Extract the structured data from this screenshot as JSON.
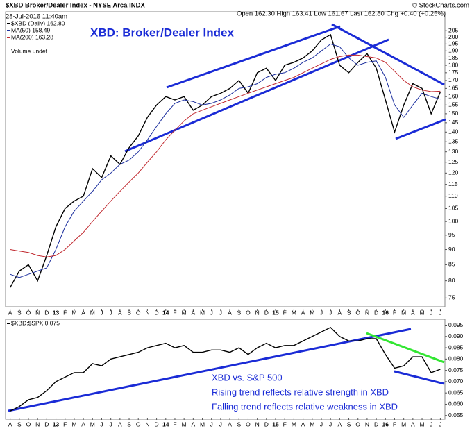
{
  "chart_data": [
    {
      "type": "line",
      "title": "$XBD Broker/Dealer Index - NYSE Arca INDX",
      "subtitle": "28-Jul-2016 11:40am",
      "quote": "Open 162.30 High 163.41 Low 161.67 Last 162.80 Chg +0.40 (+0.25%)",
      "credit": "© StockCharts.com",
      "annotation": "XBD: Broker/Dealer Index",
      "legend_note": "Volume undef",
      "log_scale": true,
      "categories": [
        "A",
        "S",
        "O",
        "N",
        "D",
        "13",
        "F",
        "M",
        "A",
        "M",
        "J",
        "J",
        "A",
        "S",
        "O",
        "N",
        "D",
        "14",
        "F",
        "M",
        "A",
        "M",
        "J",
        "J",
        "A",
        "S",
        "O",
        "N",
        "D",
        "15",
        "F",
        "M",
        "A",
        "M",
        "J",
        "J",
        "A",
        "S",
        "O",
        "N",
        "D",
        "16",
        "F",
        "M",
        "A",
        "M",
        "J",
        "J"
      ],
      "series": [
        {
          "name": "$XBD (Daily) 162.80",
          "color": "#000000",
          "values": [
            78,
            83,
            85,
            80,
            88,
            98,
            105,
            108,
            110,
            122,
            118,
            128,
            124,
            132,
            138,
            148,
            155,
            160,
            158,
            160,
            152,
            155,
            160,
            162,
            165,
            170,
            162,
            175,
            178,
            170,
            180,
            182,
            185,
            190,
            198,
            202,
            180,
            175,
            182,
            188,
            178,
            158,
            140,
            155,
            168,
            165,
            150,
            162.8
          ]
        },
        {
          "name": "MA(50) 158.49",
          "color": "#1c2f9e",
          "values": [
            82,
            81,
            82,
            83,
            84,
            90,
            98,
            104,
            108,
            112,
            117,
            120,
            124,
            126,
            130,
            136,
            143,
            150,
            156,
            158,
            157,
            155,
            156,
            158,
            161,
            165,
            166,
            168,
            172,
            174,
            175,
            178,
            182,
            185,
            190,
            195,
            193,
            185,
            180,
            182,
            183,
            172,
            155,
            148,
            155,
            162,
            160,
            158.49
          ]
        },
        {
          "name": "MA(200) 163.28",
          "color": "#c0282e",
          "values": [
            90,
            89.5,
            89,
            88,
            87.5,
            88,
            90,
            93,
            96,
            100,
            104,
            108,
            112,
            116,
            120,
            125,
            130,
            136,
            141,
            146,
            150,
            152,
            154,
            156,
            158,
            160,
            162,
            164,
            166,
            168,
            170,
            172,
            175,
            178,
            181,
            184,
            186,
            187,
            187,
            186,
            185,
            182,
            176,
            170,
            166,
            164,
            163,
            163.28
          ]
        }
      ],
      "ylim": [
        72,
        210
      ],
      "yticks": [
        75,
        80,
        85,
        90,
        95,
        100,
        105,
        110,
        115,
        120,
        125,
        130,
        135,
        140,
        145,
        150,
        155,
        160,
        165,
        170,
        175,
        180,
        185,
        190,
        195,
        200,
        205
      ]
    },
    {
      "type": "line",
      "annotations": [
        "XBD vs. S&P 500",
        "Rising trend reflects relative strength in XBD",
        "Falling trend reflects relative weakness in XBD"
      ],
      "categories": [
        "A",
        "S",
        "O",
        "N",
        "D",
        "13",
        "F",
        "M",
        "A",
        "M",
        "J",
        "J",
        "A",
        "S",
        "O",
        "N",
        "D",
        "14",
        "F",
        "M",
        "A",
        "M",
        "J",
        "J",
        "A",
        "S",
        "O",
        "N",
        "D",
        "15",
        "F",
        "M",
        "A",
        "M",
        "J",
        "J",
        "A",
        "S",
        "O",
        "N",
        "D",
        "16",
        "F",
        "M",
        "A",
        "M",
        "J",
        "J"
      ],
      "series": [
        {
          "name": "$XBD:$SPX 0.075",
          "color": "#000000",
          "values": [
            0.057,
            0.059,
            0.062,
            0.063,
            0.066,
            0.07,
            0.072,
            0.074,
            0.074,
            0.078,
            0.077,
            0.08,
            0.081,
            0.082,
            0.083,
            0.085,
            0.086,
            0.087,
            0.085,
            0.086,
            0.083,
            0.083,
            0.084,
            0.084,
            0.083,
            0.085,
            0.082,
            0.085,
            0.087,
            0.085,
            0.086,
            0.086,
            0.088,
            0.09,
            0.092,
            0.094,
            0.09,
            0.088,
            0.088,
            0.089,
            0.089,
            0.082,
            0.076,
            0.077,
            0.081,
            0.081,
            0.074,
            0.0755
          ]
        }
      ],
      "ylim": [
        0.054,
        0.097
      ],
      "yticks": [
        0.055,
        {
          "value": 0.06,
          "label": "0.060"
        },
        0.065,
        {
          "value": 0.07,
          "label": "0.070"
        },
        0.075,
        {
          "value": 0.08,
          "label": "0.080"
        },
        0.085,
        {
          "value": 0.09,
          "label": "0.090"
        },
        0.095
      ]
    }
  ]
}
